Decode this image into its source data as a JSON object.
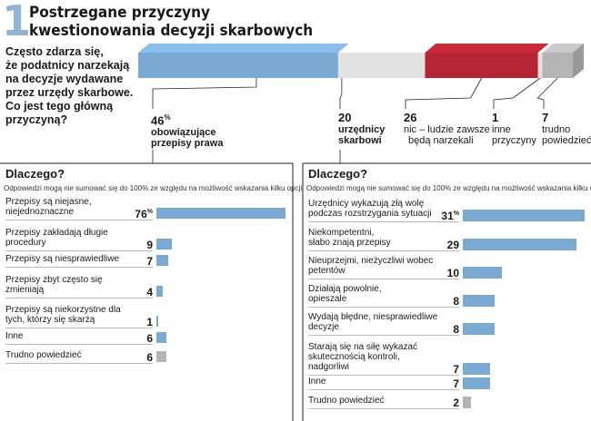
{
  "header": {
    "number": "1",
    "title_lines": [
      "Postrzegane przyczyny",
      "kwestionowania decyzji skarbowych"
    ]
  },
  "question_lines": [
    "Często zdarza się,",
    "że podatnicy narzekają",
    "na decyzje wydawane",
    "przez urzędy skarbowe.",
    "Co jest tego główną",
    "przyczyną?"
  ],
  "colors": {
    "blue": "#7aaad4",
    "light_gray": "#e2e2e2",
    "red": "#b52533",
    "gray": "#b4b4b4",
    "accent_number": "#8fb4d6"
  },
  "chart_data": [
    {
      "type": "bar",
      "orientation": "horizontal-stacked",
      "unit": "%",
      "categories": [
        {
          "value": "46",
          "unit": "%",
          "label_lines": [
            "obowiązujące",
            "przepisy prawa"
          ],
          "label_bold": true
        },
        {
          "value": "20",
          "unit": "",
          "label_lines": [
            "urzędnicy",
            "skarbowi"
          ],
          "label_bold": true
        },
        {
          "value": "26",
          "unit": "",
          "label_lines": [
            "nic – ludzie zawsze",
            "będą narzekali"
          ],
          "label_bold": false
        },
        {
          "value": "1",
          "unit": "",
          "label_lines": [
            "inne",
            "przyczyny"
          ],
          "label_bold": false
        },
        {
          "value": "7",
          "unit": "",
          "label_lines": [
            "trudno",
            "powiedzieć"
          ],
          "label_bold": false
        }
      ],
      "values": [
        46,
        20,
        26,
        1,
        7
      ]
    },
    {
      "type": "bar",
      "orientation": "horizontal",
      "title": "Dlaczego?",
      "note": "Odpowiedzi mogą nie sumować się do 100% ze względu na możliwość wskazania kilku opcji",
      "xlim": [
        0,
        76
      ],
      "rows": [
        {
          "label_lines": [
            "Przepisy są niejasne,",
            "niejednoznaczne"
          ],
          "value": 76,
          "display": "76",
          "unit": "%",
          "kind": "blue"
        },
        {
          "label_lines": [
            "Przepisy zakładają długie",
            "procedury"
          ],
          "value": 9,
          "display": "9",
          "unit": "",
          "kind": "blue"
        },
        {
          "label_lines": [
            "Przepisy są niesprawiedliwe"
          ],
          "value": 7,
          "display": "7",
          "unit": "",
          "kind": "blue"
        },
        {
          "label_lines": [
            "Przepisy zbyt często się",
            "zmieniają"
          ],
          "value": 4,
          "display": "4",
          "unit": "",
          "kind": "blue"
        },
        {
          "label_lines": [
            "Przepisy są niekorzystne dla",
            "tych, którzy się skarżą"
          ],
          "value": 1,
          "display": "1",
          "unit": "",
          "kind": "blue"
        },
        {
          "label_lines": [
            "Inne"
          ],
          "value": 6,
          "display": "6",
          "unit": "",
          "kind": "blue"
        },
        {
          "label_lines": [
            "Trudno powiedzieć"
          ],
          "value": 6,
          "display": "6",
          "unit": "",
          "kind": "gray"
        }
      ]
    },
    {
      "type": "bar",
      "orientation": "horizontal",
      "title": "Dlaczego?",
      "note": "Odpowiedzi mogą nie sumować się do 100% ze względu na możliwość wskazania kilku opcji",
      "xlim": [
        0,
        31
      ],
      "rows": [
        {
          "label_lines": [
            "Urzędnicy wykazują złą wolę",
            "podczas rozstrzygania sytuacji"
          ],
          "value": 31,
          "display": "31",
          "unit": "%",
          "kind": "blue"
        },
        {
          "label_lines": [
            "Niekompetentni,",
            "słabo znają przepisy"
          ],
          "value": 29,
          "display": "29",
          "unit": "",
          "kind": "blue"
        },
        {
          "label_lines": [
            "Nieuprzejmi, nieżyczliwi wobec",
            "petentów"
          ],
          "value": 10,
          "display": "10",
          "unit": "",
          "kind": "blue"
        },
        {
          "label_lines": [
            "Działają powolnie,",
            "opieszale"
          ],
          "value": 8,
          "display": "8",
          "unit": "",
          "kind": "blue"
        },
        {
          "label_lines": [
            "Wydają błędne, niesprawiedliwe",
            "decyzje"
          ],
          "value": 8,
          "display": "8",
          "unit": "",
          "kind": "blue"
        },
        {
          "label_lines": [
            "Starają się na siłę wykazać",
            "skutecznością kontroli,",
            "nadgorliwi"
          ],
          "value": 7,
          "display": "7",
          "unit": "",
          "kind": "blue"
        },
        {
          "label_lines": [
            "Inne"
          ],
          "value": 7,
          "display": "7",
          "unit": "",
          "kind": "blue"
        },
        {
          "label_lines": [
            "Trudno powiedzieć"
          ],
          "value": 2,
          "display": "2",
          "unit": "",
          "kind": "gray"
        }
      ]
    }
  ]
}
